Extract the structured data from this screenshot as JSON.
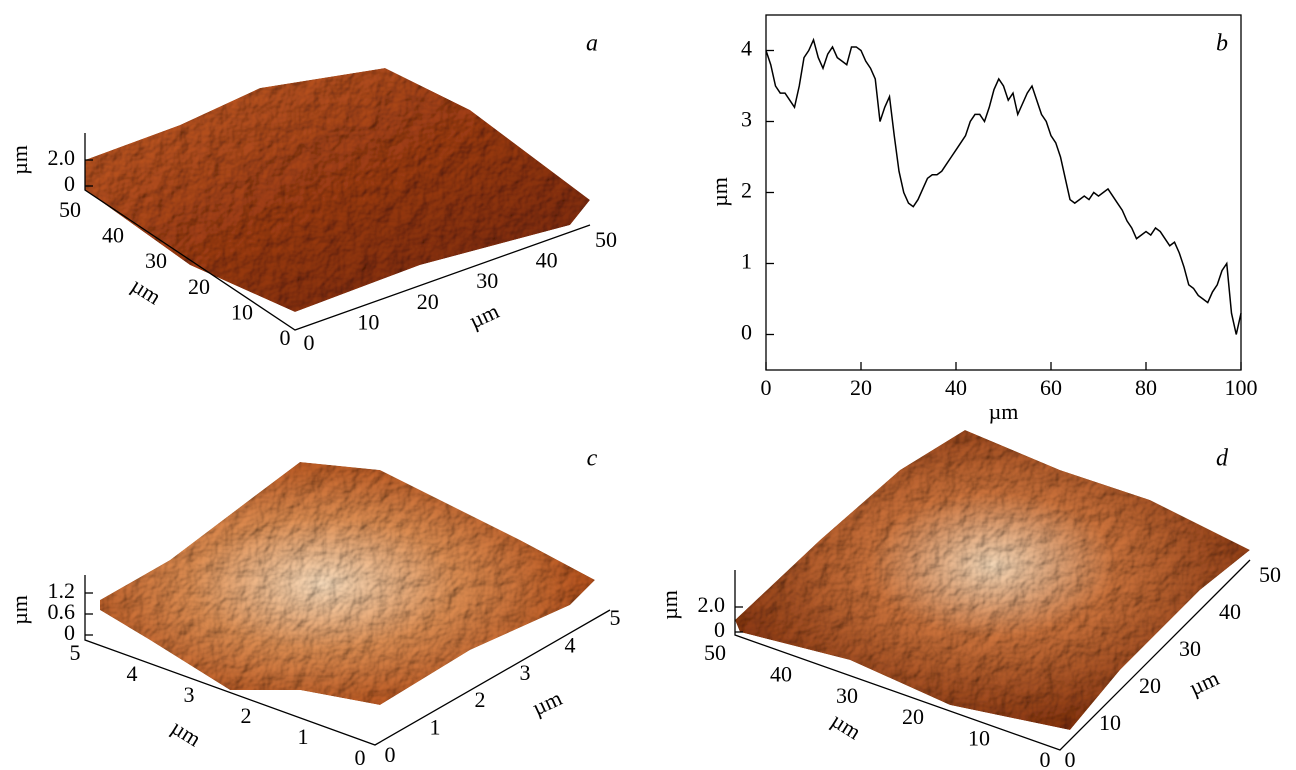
{
  "chart_data": [
    {
      "type": "surface",
      "label": "a",
      "z_label": "µm",
      "zticks": [
        0,
        {
          "value": 2,
          "label": "2.0"
        }
      ],
      "x_label": "µm",
      "xticks": [
        0,
        10,
        20,
        30,
        40,
        50
      ],
      "y_label": "µm",
      "yticks": [
        0,
        10,
        20,
        30,
        40,
        50
      ]
    },
    {
      "type": "line",
      "label": "b",
      "x_label": "µm",
      "y_label": "µm",
      "color": "#000000",
      "xlim": [
        0,
        100
      ],
      "ylim": [
        -0.5,
        4.5
      ],
      "xticks": [
        0,
        20,
        40,
        60,
        80,
        100
      ],
      "yticks": [
        0,
        1,
        2,
        3,
        4
      ],
      "x": [
        0,
        1,
        2,
        3,
        4,
        5,
        6,
        7,
        8,
        9,
        10,
        11,
        12,
        13,
        14,
        15,
        16,
        17,
        18,
        19,
        20,
        21,
        22,
        23,
        24,
        25,
        26,
        27,
        28,
        29,
        30,
        31,
        32,
        33,
        34,
        35,
        36,
        37,
        38,
        39,
        40,
        41,
        42,
        43,
        44,
        45,
        46,
        47,
        48,
        49,
        50,
        51,
        52,
        53,
        54,
        55,
        56,
        57,
        58,
        59,
        60,
        61,
        62,
        63,
        64,
        65,
        66,
        67,
        68,
        69,
        70,
        71,
        72,
        73,
        74,
        75,
        76,
        77,
        78,
        79,
        80,
        81,
        82,
        83,
        84,
        85,
        86,
        87,
        88,
        89,
        90,
        91,
        92,
        93,
        94,
        95,
        96,
        97,
        98,
        99,
        100
      ],
      "values": [
        4.0,
        3.8,
        3.5,
        3.4,
        3.4,
        3.3,
        3.2,
        3.5,
        3.9,
        4.0,
        4.15,
        3.9,
        3.75,
        3.95,
        4.05,
        3.9,
        3.85,
        3.8,
        4.05,
        4.05,
        4.0,
        3.85,
        3.75,
        3.6,
        3.0,
        3.2,
        3.35,
        2.8,
        2.3,
        2.0,
        1.85,
        1.8,
        1.9,
        2.05,
        2.2,
        2.25,
        2.25,
        2.3,
        2.4,
        2.5,
        2.6,
        2.7,
        2.8,
        3.0,
        3.1,
        3.1,
        3.0,
        3.2,
        3.45,
        3.6,
        3.5,
        3.3,
        3.4,
        3.1,
        3.25,
        3.4,
        3.5,
        3.3,
        3.1,
        3.0,
        2.8,
        2.7,
        2.5,
        2.2,
        1.9,
        1.85,
        1.9,
        1.95,
        1.9,
        2.0,
        1.95,
        2.0,
        2.05,
        1.95,
        1.85,
        1.75,
        1.6,
        1.5,
        1.35,
        1.4,
        1.45,
        1.4,
        1.5,
        1.45,
        1.35,
        1.25,
        1.3,
        1.15,
        0.95,
        0.7,
        0.65,
        0.55,
        0.5,
        0.45,
        0.6,
        0.7,
        0.9,
        1.0,
        0.3,
        0.0,
        0.3
      ]
    },
    {
      "type": "surface",
      "label": "c",
      "z_label": "µm",
      "zticks": [
        0,
        0.6,
        1.2
      ],
      "x_label": "µm",
      "xticks": [
        0,
        1,
        2,
        3,
        4,
        5
      ],
      "y_label": "µm",
      "yticks": [
        0,
        1,
        2,
        3,
        4,
        5
      ]
    },
    {
      "type": "surface",
      "label": "d",
      "z_label": "µm",
      "zticks": [
        0,
        {
          "value": 2,
          "label": "2.0"
        }
      ],
      "x_label": "µm",
      "xticks": [
        0,
        10,
        20,
        30,
        40,
        50
      ],
      "y_label": "µm",
      "yticks": [
        0,
        10,
        20,
        30,
        40,
        50
      ]
    }
  ]
}
